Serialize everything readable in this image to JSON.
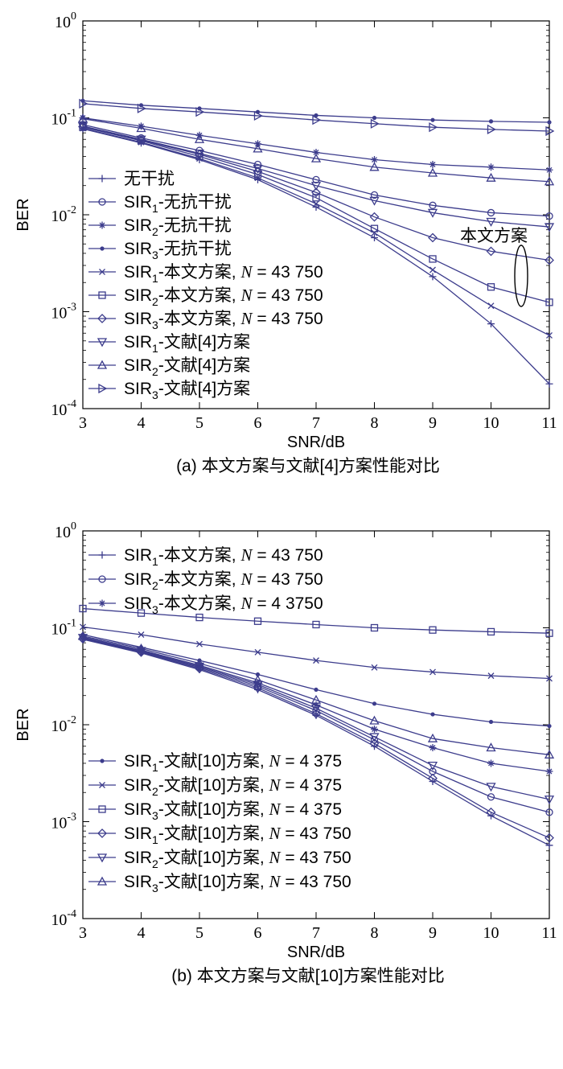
{
  "colors": {
    "series": "#3c3c8c",
    "axis": "#000000"
  },
  "chart_data": [
    {
      "type": "line",
      "caption": "(a) 本文方案与文献[4]方案性能对比",
      "xlabel": "SNR/dB",
      "ylabel": "BER",
      "yscale": "log",
      "xlim": [
        3,
        11
      ],
      "ylim": [
        0.0001,
        1
      ],
      "x_ticks": [
        "3",
        "4",
        "5",
        "6",
        "7",
        "8",
        "9",
        "10",
        "11"
      ],
      "y_ticks": [
        {
          "base": "10",
          "exp": "0"
        },
        {
          "base": "10",
          "exp": "-1"
        },
        {
          "base": "10",
          "exp": "-2"
        },
        {
          "base": "10",
          "exp": "-3"
        },
        {
          "base": "10",
          "exp": "-4"
        }
      ],
      "grid": false,
      "legend_position": "left-middle",
      "annotation": "本文方案",
      "x": [
        3,
        4,
        5,
        6,
        7,
        8,
        9,
        10,
        11
      ],
      "series": [
        {
          "name": "无干扰",
          "sub": "",
          "suffix": "",
          "marker": "plus",
          "values": [
            0.077,
            0.055,
            0.037,
            0.023,
            0.012,
            0.0058,
            0.0023,
            0.00075,
            0.00018
          ]
        },
        {
          "name": "SIR",
          "sub": "1",
          "suffix": "-无抗干扰",
          "marker": "circle",
          "values": [
            0.085,
            0.062,
            0.046,
            0.033,
            0.023,
            0.016,
            0.0125,
            0.0105,
            0.0097
          ]
        },
        {
          "name": "SIR",
          "sub": "2",
          "suffix": "-无抗干扰",
          "marker": "star",
          "values": [
            0.1,
            0.082,
            0.066,
            0.054,
            0.044,
            0.037,
            0.033,
            0.031,
            0.029
          ]
        },
        {
          "name": "SIR",
          "sub": "3",
          "suffix": "-无抗干扰",
          "marker": "dot",
          "values": [
            0.15,
            0.135,
            0.125,
            0.115,
            0.106,
            0.1,
            0.095,
            0.092,
            0.09
          ]
        },
        {
          "name": "SIR",
          "sub": "1",
          "suffix": "-本文方案, ",
          "nlabel": "N = 43 750",
          "marker": "x",
          "values": [
            0.078,
            0.056,
            0.038,
            0.024,
            0.013,
            0.0065,
            0.0027,
            0.00115,
            0.00057
          ]
        },
        {
          "name": "SIR",
          "sub": "2",
          "suffix": "-本文方案, ",
          "nlabel": "N = 43 750",
          "marker": "square",
          "values": [
            0.08,
            0.058,
            0.04,
            0.026,
            0.015,
            0.0072,
            0.0035,
            0.0018,
            0.00125
          ]
        },
        {
          "name": "SIR",
          "sub": "3",
          "suffix": "-本文方案, ",
          "nlabel": "N = 43 750",
          "marker": "diamond",
          "values": [
            0.081,
            0.059,
            0.042,
            0.028,
            0.017,
            0.0095,
            0.0058,
            0.0042,
            0.0034
          ]
        },
        {
          "name": "SIR",
          "sub": "1",
          "suffix": "-文献[4]方案",
          "marker": "tri-down",
          "values": [
            0.082,
            0.06,
            0.043,
            0.03,
            0.02,
            0.014,
            0.0105,
            0.0085,
            0.0075
          ]
        },
        {
          "name": "SIR",
          "sub": "2",
          "suffix": "-文献[4]方案",
          "marker": "tri-up",
          "values": [
            0.098,
            0.078,
            0.06,
            0.048,
            0.038,
            0.031,
            0.027,
            0.024,
            0.022
          ]
        },
        {
          "name": "SIR",
          "sub": "3",
          "suffix": "-文献[4]方案",
          "marker": "tri-right",
          "values": [
            0.14,
            0.125,
            0.115,
            0.105,
            0.095,
            0.087,
            0.08,
            0.076,
            0.073
          ]
        }
      ]
    },
    {
      "type": "line",
      "caption": "(b) 本文方案与文献[10]方案性能对比",
      "xlabel": "SNR/dB",
      "ylabel": "BER",
      "yscale": "log",
      "xlim": [
        3,
        11
      ],
      "ylim": [
        0.0001,
        1
      ],
      "x_ticks": [
        "3",
        "4",
        "5",
        "6",
        "7",
        "8",
        "9",
        "10",
        "11"
      ],
      "y_ticks": [
        {
          "base": "10",
          "exp": "0"
        },
        {
          "base": "10",
          "exp": "-1"
        },
        {
          "base": "10",
          "exp": "-2"
        },
        {
          "base": "10",
          "exp": "-3"
        },
        {
          "base": "10",
          "exp": "-4"
        }
      ],
      "grid": false,
      "legend_position": "top-left and bottom-left",
      "x": [
        3,
        4,
        5,
        6,
        7,
        8,
        9,
        10,
        11
      ],
      "series": [
        {
          "name": "SIR",
          "sub": "1",
          "suffix": "-本文方案, ",
          "nlabel": "N = 43 750",
          "marker": "plus",
          "values": [
            0.076,
            0.055,
            0.037,
            0.023,
            0.0125,
            0.006,
            0.0026,
            0.00115,
            0.00057
          ]
        },
        {
          "name": "SIR",
          "sub": "2",
          "suffix": "-本文方案, ",
          "nlabel": "N = 43 750",
          "marker": "circle",
          "values": [
            0.078,
            0.057,
            0.039,
            0.025,
            0.014,
            0.007,
            0.0033,
            0.0018,
            0.00125
          ]
        },
        {
          "name": "SIR",
          "sub": "3",
          "suffix": "-本文方案, ",
          "nlabel": "N = 4 3750",
          "marker": "star",
          "values": [
            0.08,
            0.059,
            0.041,
            0.027,
            0.016,
            0.009,
            0.0058,
            0.004,
            0.0033
          ]
        },
        {
          "name": "SIR",
          "sub": "1",
          "suffix": "-文献[10]方案, ",
          "nlabel": "N = 4 375",
          "marker": "dot",
          "values": [
            0.085,
            0.063,
            0.046,
            0.033,
            0.023,
            0.0165,
            0.0128,
            0.0107,
            0.0097
          ]
        },
        {
          "name": "SIR",
          "sub": "2",
          "suffix": "-文献[10]方案, ",
          "nlabel": "N = 4 375",
          "marker": "x",
          "values": [
            0.102,
            0.085,
            0.068,
            0.056,
            0.046,
            0.039,
            0.035,
            0.032,
            0.03
          ]
        },
        {
          "name": "SIR",
          "sub": "3",
          "suffix": "-文献[10]方案, ",
          "nlabel": "N = 4 375",
          "marker": "square",
          "values": [
            0.158,
            0.142,
            0.128,
            0.117,
            0.108,
            0.1,
            0.095,
            0.091,
            0.088
          ]
        },
        {
          "name": "SIR",
          "sub": "1",
          "suffix": "-文献[10]方案, ",
          "nlabel": "N = 43 750",
          "marker": "diamond",
          "values": [
            0.077,
            0.056,
            0.038,
            0.024,
            0.013,
            0.0064,
            0.0028,
            0.00125,
            0.00068
          ]
        },
        {
          "name": "SIR",
          "sub": "2",
          "suffix": "-文献[10]方案, ",
          "nlabel": "N = 43 750",
          "marker": "tri-down",
          "values": [
            0.079,
            0.058,
            0.04,
            0.026,
            0.0148,
            0.0075,
            0.0038,
            0.0023,
            0.0017
          ]
        },
        {
          "name": "SIR",
          "sub": "3",
          "suffix": "-文献[10]方案, ",
          "nlabel": "N = 43 750",
          "marker": "tri-up",
          "values": [
            0.082,
            0.061,
            0.043,
            0.029,
            0.018,
            0.011,
            0.0072,
            0.0058,
            0.0049
          ]
        }
      ]
    }
  ]
}
